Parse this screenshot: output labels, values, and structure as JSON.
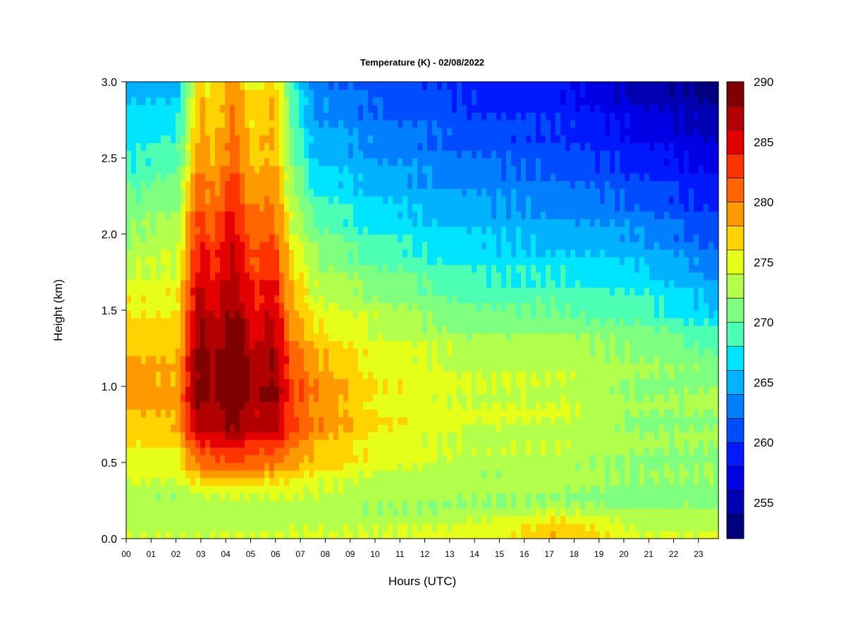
{
  "chart_data": {
    "type": "heatmap",
    "title": "Temperature (K) - 02/08/2022",
    "xlabel": "Hours (UTC)",
    "ylabel": "Height (km)",
    "x_ticks": [
      "00",
      "01",
      "02",
      "03",
      "04",
      "05",
      "06",
      "07",
      "08",
      "09",
      "10",
      "11",
      "12",
      "13",
      "14",
      "15",
      "16",
      "17",
      "18",
      "19",
      "20",
      "21",
      "22",
      "23"
    ],
    "xlim": [
      0,
      23.8
    ],
    "y_ticks": [
      "0.0",
      "0.5",
      "1.0",
      "1.5",
      "2.0",
      "2.5",
      "3.0"
    ],
    "ylim": [
      0,
      3.0
    ],
    "colorbar": {
      "ticks": [
        "255",
        "260",
        "265",
        "270",
        "275",
        "280",
        "285",
        "290"
      ],
      "range": [
        252,
        290
      ],
      "levels": [
        252,
        254.5,
        257,
        259.5,
        262,
        264.5,
        267,
        269.5,
        272,
        274.5,
        277,
        279.5,
        282,
        284.5,
        287,
        290
      ],
      "colors": [
        "#00007F",
        "#0000B2",
        "#0000E5",
        "#0019FF",
        "#004CFF",
        "#007FFF",
        "#00B2FF",
        "#00E5FF",
        "#4CFFB2",
        "#7FFF7F",
        "#B2FF4C",
        "#E5FF19",
        "#FFD200",
        "#FF9900",
        "#FF6600",
        "#FF3300",
        "#E50000",
        "#B20000",
        "#7F0000"
      ]
    },
    "grid": false,
    "z_field_approx": {
      "description_units": "K",
      "heights_km": [
        0.0,
        0.25,
        0.5,
        0.75,
        1.0,
        1.25,
        1.5,
        2.0,
        2.5,
        3.0
      ],
      "profiles": [
        {
          "hour": 0.0,
          "temps": [
            274,
            273,
            275,
            277,
            279,
            278,
            276,
            272,
            268,
            265
          ]
        },
        {
          "hour": 2.0,
          "temps": [
            274,
            272,
            275,
            278,
            279,
            277,
            276,
            273,
            269,
            265
          ]
        },
        {
          "hour": 3.0,
          "temps": [
            274,
            273,
            281,
            287,
            289,
            289,
            287,
            283,
            279,
            277
          ]
        },
        {
          "hour": 4.4,
          "temps": [
            274,
            273,
            282,
            288,
            290,
            289,
            287,
            284,
            280,
            278
          ]
        },
        {
          "hour": 6.0,
          "temps": [
            274,
            273,
            280,
            286,
            287,
            286,
            284,
            280,
            277,
            276
          ]
        },
        {
          "hour": 7.5,
          "temps": [
            274,
            273,
            277,
            280,
            280,
            278,
            275,
            271,
            266,
            263
          ]
        },
        {
          "hour": 10.0,
          "temps": [
            274,
            272,
            275,
            276,
            276,
            275,
            273,
            268,
            264,
            261
          ]
        },
        {
          "hour": 14.0,
          "temps": [
            275,
            272,
            273,
            274,
            274,
            273,
            270,
            266,
            262,
            259
          ]
        },
        {
          "hour": 17.5,
          "temps": [
            279,
            272,
            273,
            274,
            274,
            273,
            270,
            265,
            261,
            258
          ]
        },
        {
          "hour": 20.5,
          "temps": [
            275,
            271,
            272,
            272,
            272,
            272,
            269,
            264,
            259,
            255
          ]
        },
        {
          "hour": 23.8,
          "temps": [
            275,
            271,
            272,
            272,
            272,
            270,
            266,
            261,
            257,
            253
          ]
        }
      ]
    }
  }
}
